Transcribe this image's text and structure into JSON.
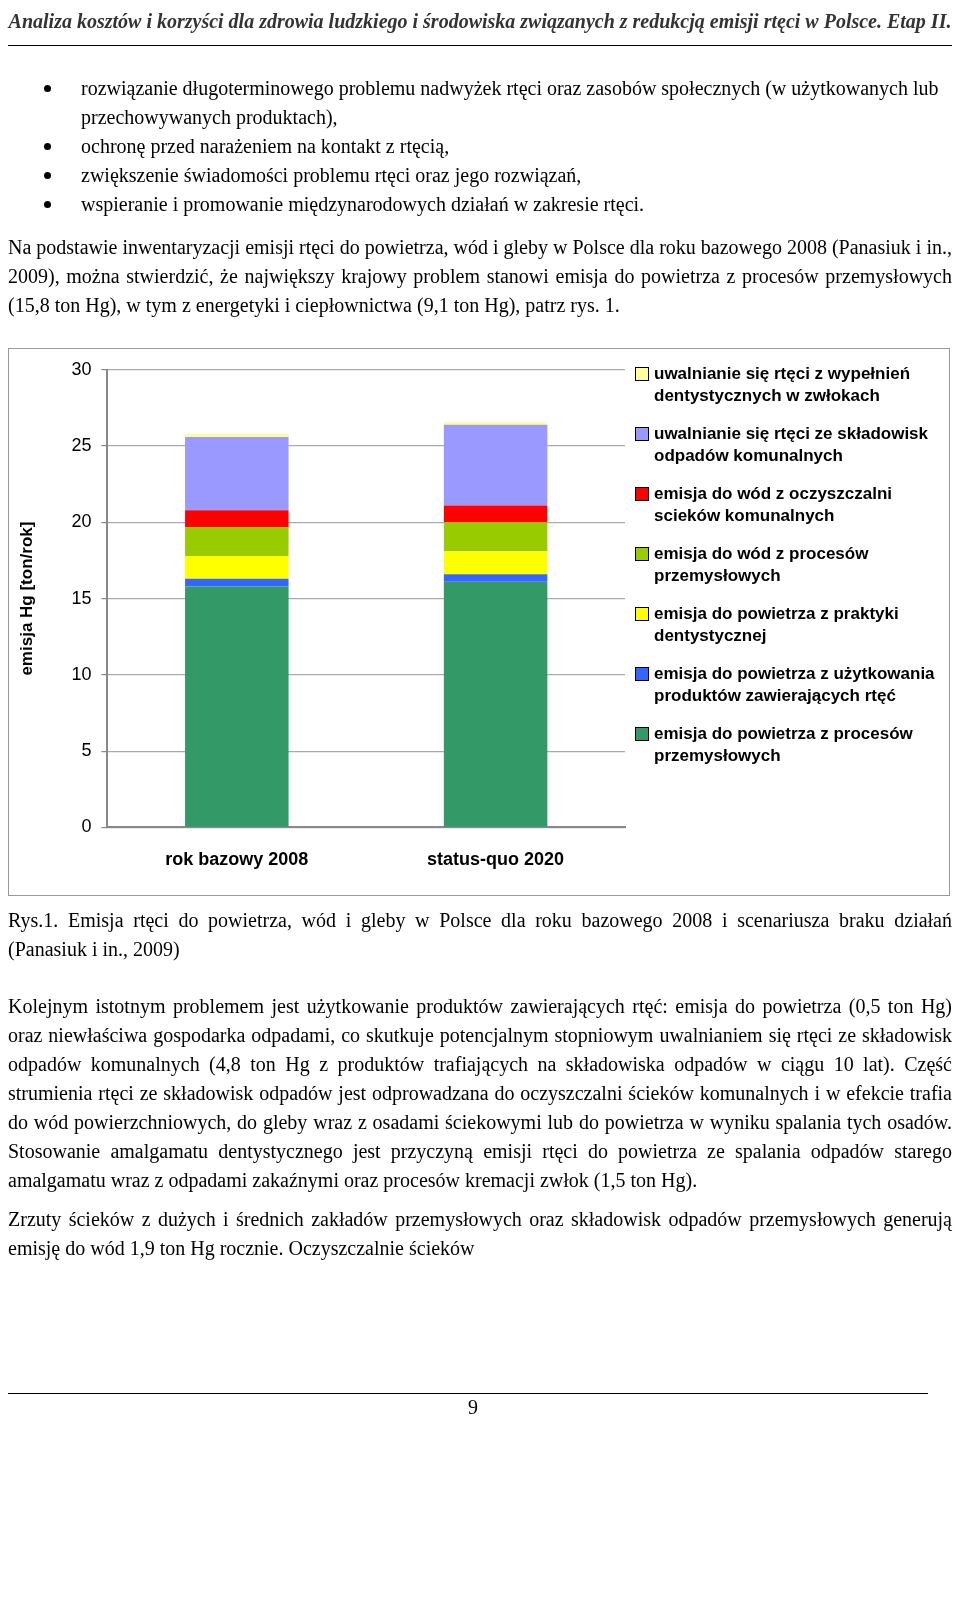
{
  "chart_data": {
    "type": "bar",
    "stacked": true,
    "title": "Analiza kosztów i korzyści dla zdrowia ludzkiego i środowiska związanych z redukcją emisji rtęci w Polsce. Etap II.",
    "ylabel": "emisja Hg [ton/rok]",
    "categories": [
      "rok bazowy 2008",
      "status-quo 2020"
    ],
    "series": [
      {
        "name": "emisja do powietrza z procesów przemysłowych",
        "color": "#339966",
        "values": [
          15.8,
          16.1
        ]
      },
      {
        "name": "emisja do powietrza z użytkowania produktów zawierających rtęć",
        "color": "#3366ff",
        "values": [
          0.5,
          0.5
        ]
      },
      {
        "name": "emisja do powietrza z praktyki dentystycznej",
        "color": "#ffff00",
        "values": [
          1.5,
          1.5
        ]
      },
      {
        "name": "emisja do wód z procesów przemysłowych",
        "color": "#99cc00",
        "values": [
          1.9,
          1.9
        ]
      },
      {
        "name": "emisja do wód z oczyszczalni scieków komunalnych",
        "color": "#ff0000",
        "values": [
          1.1,
          1.1
        ]
      },
      {
        "name": "uwalnianie się rtęci ze składowisk odpadów komunalnych",
        "color": "#9999ff",
        "values": [
          4.8,
          5.3
        ]
      },
      {
        "name": "uwalnianie się rtęci z wypełnień dentystycznych w zwłokach",
        "color": "#ffff99",
        "values": [
          0.2,
          0.2
        ]
      }
    ],
    "ylim": [
      0,
      30
    ],
    "yticks": [
      0,
      5,
      10,
      15,
      20,
      25,
      30
    ],
    "grid": "y",
    "legend": "right",
    "annotations": [
      "rozwiązanie długoterminowego problemu nadwyżek rtęci oraz zasobów społecznych (w użytkowanych lub przechowywanych produktach),",
      "ochronę przed narażeniem na kontakt z rtęcią,",
      "zwiększenie świadomości problemu rtęci oraz jego rozwiązań,",
      "wspieranie i promowanie międzynarodowych działań w zakresie rtęci.",
      "Na podstawie inwentaryzacji emisji rtęci do powietrza, wód i gleby w Polsce dla roku bazowego 2008 (Panasiuk i in., 2009), można stwierdzić, że największy krajowy problem stanowi emisja do powietrza z procesów przemysłowych (15,8 ton Hg), w tym z energetyki i ciepłownictwa (9,1 ton Hg), patrz rys. 1.",
      "Rys.1. Emisja rtęci do powietrza, wód i gleby w Polsce dla roku bazowego 2008 i scenariusza braku działań (Panasiuk i in., 2009)",
      "Kolejnym istotnym problemem jest użytkowanie produktów zawierających rtęć: emisja do powietrza (0,5 ton Hg) oraz niewłaściwa gospodarka odpadami, co skutkuje potencjalnym stopniowym uwalnianiem się rtęci ze składowisk odpadów komunalnych (4,8 ton Hg z produktów trafiających na składowiska odpadów w ciągu 10 lat). Część strumienia rtęci ze składowisk odpadów jest odprowadzana do oczyszczalni ścieków komunalnych i w efekcie trafia do wód powierzchniowych, do gleby wraz z osadami ściekowymi lub do powietrza w wyniku spalania tych osadów. Stosowanie amalgamatu dentystycznego jest przyczyną emisji rtęci do powietrza ze spalania odpadów starego amalgamatu wraz z odpadami zakaźnymi oraz procesów kremacji zwłok (1,5 ton Hg).",
      "Zrzuty ścieków z dużych i średnich zakładów przemysłowych oraz składowisk odpadów przemysłowych generują emisję do wód 1,9 ton Hg rocznie. Oczyszczalnie ścieków",
      "9"
    ]
  }
}
